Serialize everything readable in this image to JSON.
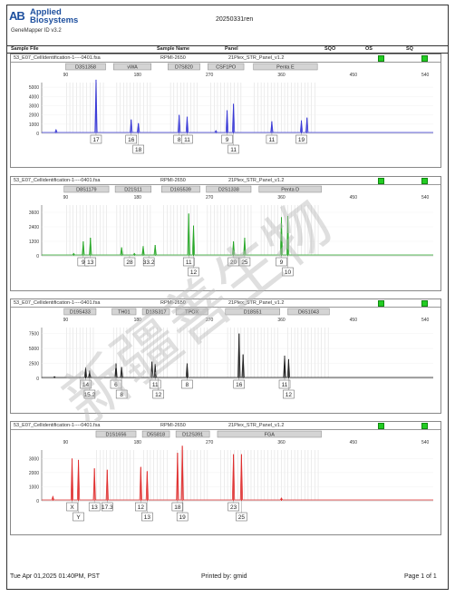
{
  "header": {
    "logo_mark": "AB",
    "logo_line1": "Applied",
    "logo_line2": "Biosystems",
    "app_name": "GeneMapper ID v3.2",
    "project": "20250331ren"
  },
  "columns": {
    "sample_file": "Sample File",
    "sample_name": "Sample Name",
    "panel": "Panel",
    "sqo": "SQO",
    "os": "OS",
    "sq": "SQ"
  },
  "sample": {
    "file_row1": "53_E07_CellIdentification-1----0401.fsa",
    "file": "53_E07_Cellidentification-1----0401.fsa",
    "name": "RPMI-2650",
    "panel": "21Plex_STR_Panel_v1.2"
  },
  "colors": {
    "blue": "#3a3ad6",
    "green": "#2aa82a",
    "black": "#222222",
    "red": "#e03030",
    "qc": "#22cc22"
  },
  "watermark": "新疆善生物",
  "axis_ticks": [
    "90",
    "180",
    "270",
    "360",
    "450",
    "540"
  ],
  "panels": [
    {
      "color": "#3a3ad6",
      "y_ticks": [
        "5000",
        "2500",
        "0"
      ],
      "y_max_label": "",
      "y_tick_labels": [
        "5000",
        "4000",
        "3000",
        "2000",
        "1000",
        "0"
      ],
      "loci": [
        "D3S1358",
        "vWA",
        "D7S820",
        "CSF1PO",
        "Penta E"
      ],
      "alleles_top": [
        "17",
        "16",
        "8",
        "11",
        "9",
        "11",
        "19"
      ],
      "alleles_bottom": [
        "18",
        "11"
      ]
    },
    {
      "color": "#2aa82a",
      "y_tick_labels": [
        "3600",
        "2400",
        "1200",
        "0"
      ],
      "loci": [
        "D8S1179",
        "D21S11",
        "D16S539",
        "D2S1338",
        "Penta D"
      ],
      "alleles_top": [
        "9",
        "13",
        "28",
        "33.2",
        "11",
        "20",
        "25",
        "9"
      ],
      "alleles_bottom": [
        "12",
        "10"
      ]
    },
    {
      "color": "#222222",
      "y_tick_labels": [
        "7500",
        "5000",
        "2500",
        "0"
      ],
      "loci": [
        "D19S433",
        "TH01",
        "D13S317",
        "TPOX",
        "D18S51",
        "D6S1043"
      ],
      "alleles_top": [
        "14",
        "6",
        "11",
        "8",
        "16",
        "11"
      ],
      "alleles_bottom": [
        "15.2",
        "8",
        "12",
        "12"
      ]
    },
    {
      "color": "#e03030",
      "y_tick_labels": [
        "3000",
        "2000",
        "1000",
        "0"
      ],
      "loci": [
        "D1S1656",
        "D5S818",
        "D12S391",
        "FGA"
      ],
      "alleles_top": [
        "X",
        "13",
        "17.3",
        "12",
        "18",
        "23"
      ],
      "alleles_bottom": [
        "Y",
        "13",
        "19",
        "25"
      ]
    }
  ],
  "footer": {
    "datetime": "Tue Apr 01,2025 01:40PM, PST",
    "printed_by": "Printed by: gmid",
    "page": "Page 1 of 1"
  }
}
